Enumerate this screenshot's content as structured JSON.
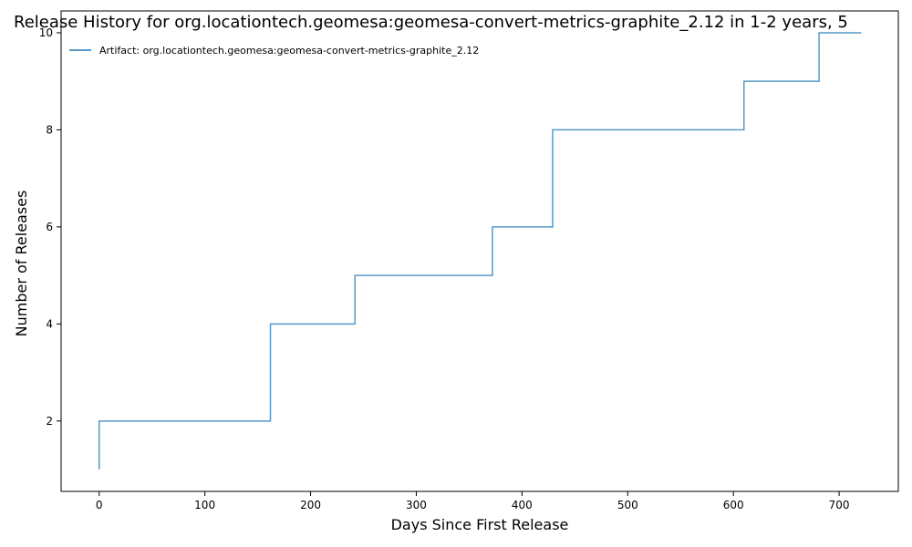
{
  "chart_data": {
    "type": "line",
    "title": "Release History for org.locationtech.geomesa:geomesa-convert-metrics-graphite_2.12 in 1-2 years, 5",
    "xlabel": "Days Since First Release",
    "ylabel": "Number of Releases",
    "xlim": [
      -36,
      756
    ],
    "ylim": [
      0.55,
      10.45
    ],
    "xticks": [
      0,
      100,
      200,
      300,
      400,
      500,
      600,
      700
    ],
    "yticks": [
      2,
      4,
      6,
      8,
      10
    ],
    "grid": false,
    "legend_position": "top-left",
    "step": "post",
    "series": [
      {
        "name": "Artifact: org.locationtech.geomesa:geomesa-convert-metrics-graphite_2.12",
        "color": "#1f77b4",
        "x": [
          0,
          0,
          162,
          242,
          372,
          429,
          610,
          681,
          721
        ],
        "y": [
          1,
          2,
          4,
          5,
          6,
          8,
          9,
          10,
          10
        ]
      }
    ]
  }
}
